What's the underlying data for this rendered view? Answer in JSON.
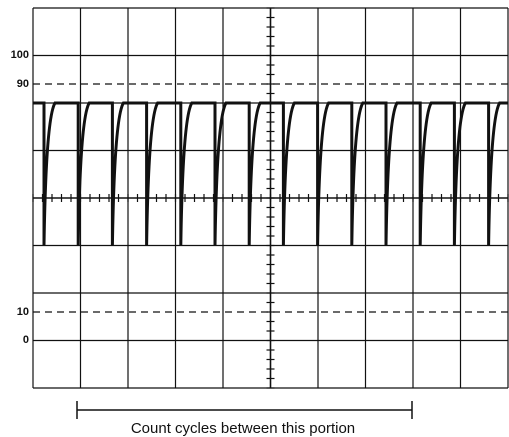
{
  "scale_labels": [
    "100",
    "90",
    "10",
    "0"
  ],
  "caption": "Count cycles between this portion"
}
